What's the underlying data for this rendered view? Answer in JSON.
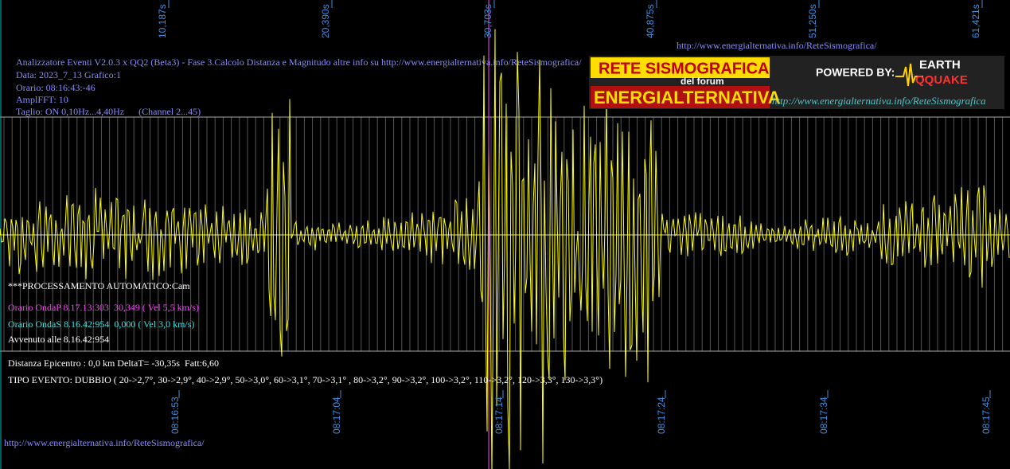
{
  "top_time_labels": [
    "10,187s",
    "20,390s",
    "30,703s",
    "40,875s",
    "51,250s",
    "61,421s"
  ],
  "bottom_time_labels": [
    "08:16:53",
    "08:17:04",
    "08:17:14",
    "08:17:24",
    "08:17:34",
    "08:17:45"
  ],
  "top_url": "http://www.energialternativa.info/ReteSismografica/",
  "info": [
    "Analizzatore Eventi V2.0.3 x QQ2 (Beta3) - Fase 3.Calcolo Distanza e Magnitudo altre info su http://www.energialternativa.info/ReteSismografica/",
    "Data: 2023_7_13 Grafico:1",
    "Orario: 08:16:43:-46",
    "AmplFFT: 10",
    "Taglio: ON 0,10Hz...4,40Hz      (Channel 2...45)"
  ],
  "logo": {
    "title": "RETE SISMOGRAFICA",
    "subtitle": "del forum",
    "name": "ENERGIALTERNATIVA",
    "powered": "POWERED BY:",
    "brand_top": "EARTH",
    "brand_bottom": "QQUAKE",
    "url": "http://www.energialternativa.info/ReteSismografica"
  },
  "processing": "***PROCESSAMENTO AUTOMATICO:Cam",
  "onda_p": "Orario OndaP 8.17.13:303  30,349 ( Vel 5,5 km/s)",
  "onda_s": "Orario OndaS 8.16.42:954  0,000 ( Vel 3,0 km/s)",
  "avvenuto": "Avvenuto alle 8.16.42:954",
  "distanza": "Distanza Epicentro : 0,0 km DeltaT= -30,35s  Fatt:6,60",
  "tipo_evento": "TIPO EVENTO: DUBBIO ( 20->2,7°, 30->2,9°, 40->2,9°, 50->3,0°, 60->3,1°, 70->3,1° , 80->3,2°, 90->3,2°, 100->3,2°, 110->3,2°, 120->3,3°, 130->3,3°)",
  "bottom_url": "http://www.energialternativa.info/ReteSismografica/"
}
